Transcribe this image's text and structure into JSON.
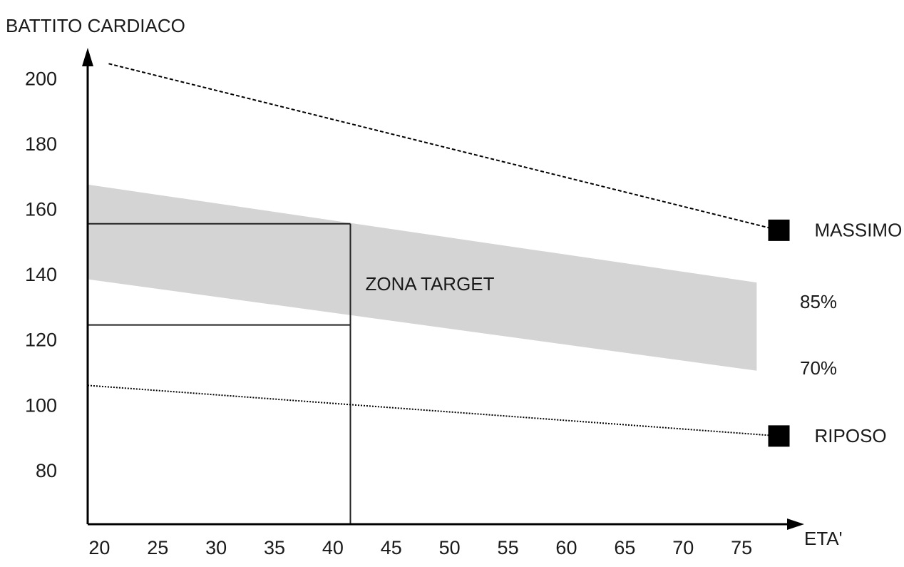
{
  "chart_data": {
    "type": "line",
    "y_label": "BATTITO CARDIACO",
    "x_label": "ETA'",
    "xlim": [
      19,
      80
    ],
    "ylim": [
      64,
      209
    ],
    "xticks": [
      20,
      25,
      30,
      35,
      40,
      45,
      50,
      55,
      60,
      65,
      70,
      75
    ],
    "yticks": [
      80,
      100,
      120,
      140,
      160,
      180,
      200
    ],
    "band": {
      "name": "ZONA TARGET",
      "x": [
        19,
        76.3
      ],
      "upper": [
        168,
        138
      ],
      "lower": [
        139,
        111
      ],
      "upper_label": "85%",
      "lower_label": "70%",
      "color": "#d4d4d4"
    },
    "target_box": {
      "x_end": 41.5,
      "y": [
        125,
        156
      ]
    },
    "series": [
      {
        "name": "MASSIMO",
        "x": [
          20.8,
          78.2
        ],
        "values": [
          205,
          154
        ],
        "color": "#000000"
      },
      {
        "name": "RIPOSO",
        "x": [
          19,
          78.2
        ],
        "values": [
          106.5,
          91
        ],
        "color": "#000000"
      }
    ]
  }
}
